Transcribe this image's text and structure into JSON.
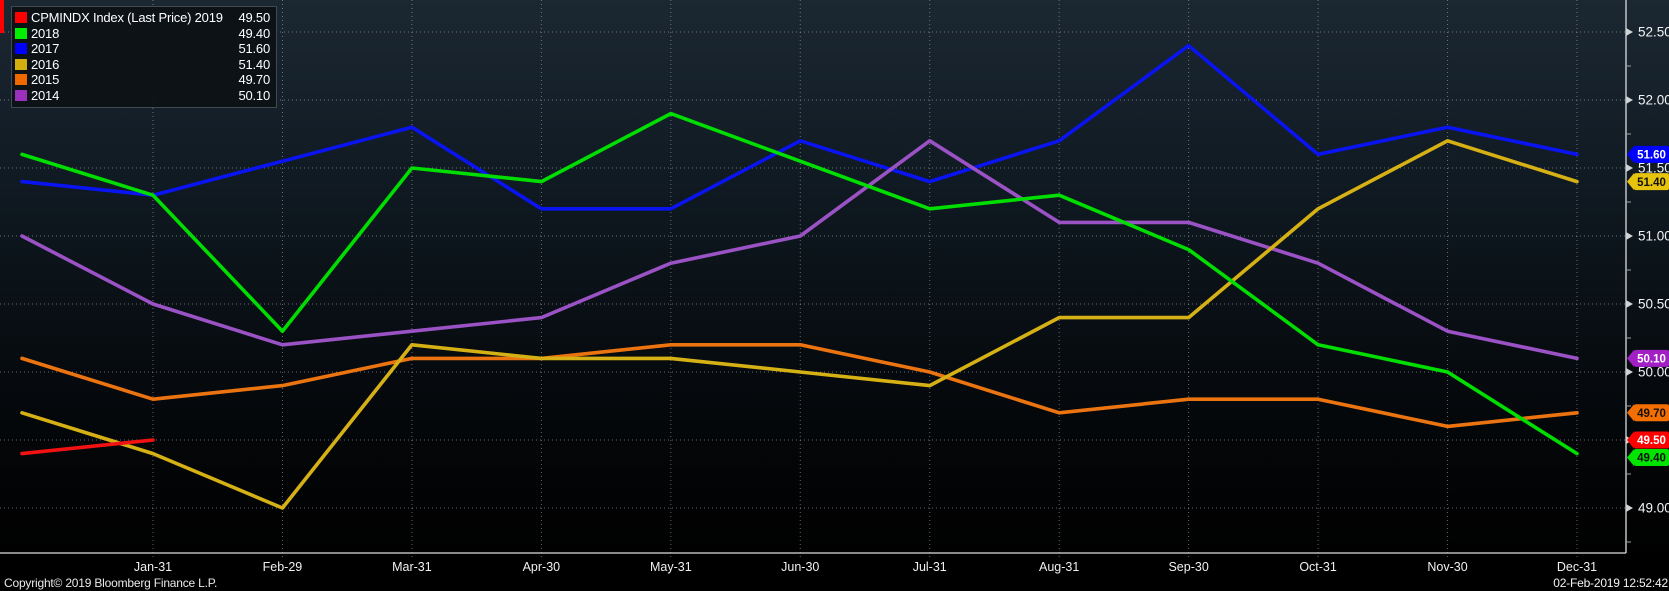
{
  "window": {
    "accent_color": "#ff0000"
  },
  "legend": {
    "items": [
      {
        "label": "CPMINDX Index (Last Price) 2019",
        "value": "49.50",
        "color": "#ff0000"
      },
      {
        "label": "2018",
        "value": "49.40",
        "color": "#00ee00"
      },
      {
        "label": "2017",
        "value": "51.60",
        "color": "#0000ff"
      },
      {
        "label": "2016",
        "value": "51.40",
        "color": "#d4af10"
      },
      {
        "label": "2015",
        "value": "49.70",
        "color": "#f06800"
      },
      {
        "label": "2014",
        "value": "50.10",
        "color": "#9b30bc"
      }
    ]
  },
  "chart_data": {
    "type": "line",
    "x_tick_labels": [
      "Jan-31",
      "Feb-29",
      "Mar-31",
      "Apr-30",
      "May-31",
      "Jun-30",
      "Jul-31",
      "Aug-31",
      "Sep-30",
      "Oct-31",
      "Nov-30",
      "Dec-31"
    ],
    "series": [
      {
        "name": "2019",
        "color": "#f21212",
        "values": [
          49.4,
          49.5
        ]
      },
      {
        "name": "2018",
        "color": "#00dd00",
        "values": [
          51.6,
          51.3,
          50.3,
          51.5,
          51.4,
          51.9,
          51.55,
          51.2,
          51.3,
          50.9,
          50.2,
          50.0,
          49.4
        ]
      },
      {
        "name": "2017",
        "color": "#0a14f0",
        "values": [
          51.4,
          51.3,
          51.55,
          51.8,
          51.2,
          51.2,
          51.7,
          51.4,
          51.7,
          52.4,
          51.6,
          51.8,
          51.6
        ]
      },
      {
        "name": "2016",
        "color": "#d6b115",
        "values": [
          49.7,
          49.4,
          49.0,
          50.2,
          50.1,
          50.1,
          50.0,
          49.9,
          50.4,
          50.4,
          51.2,
          51.7,
          51.4
        ]
      },
      {
        "name": "2015",
        "color": "#ec7410",
        "values": [
          50.1,
          49.8,
          49.9,
          50.1,
          50.1,
          50.2,
          50.2,
          50.0,
          49.7,
          49.8,
          49.8,
          49.6,
          49.7
        ]
      },
      {
        "name": "2014",
        "color": "#9a52c4",
        "values": [
          51.0,
          50.5,
          50.2,
          50.3,
          50.4,
          50.8,
          51.0,
          51.7,
          51.1,
          51.1,
          50.8,
          50.3,
          50.1
        ]
      }
    ],
    "draw_order": [
      "2017",
      "2014",
      "2015",
      "2016",
      "2018",
      "2019"
    ],
    "y_tick_labels": [
      "52.50",
      "52.00",
      "51.50",
      "51.00",
      "50.50",
      "50.00",
      "49.50",
      "49.00"
    ],
    "y_minor_ticks": [
      52.25,
      51.75,
      51.25,
      50.75,
      50.25,
      49.75,
      49.25,
      48.75
    ],
    "ylim": [
      48.7,
      52.75
    ],
    "grid": true,
    "legend_position": "top-left"
  },
  "end_labels": [
    {
      "text": "51.60",
      "bg": "#0000ff",
      "fg": "#ffffff",
      "value": 51.6
    },
    {
      "text": "51.40",
      "bg": "#e6c40e",
      "fg": "#111111",
      "value": 51.4
    },
    {
      "text": "50.10",
      "bg": "#a21fc4",
      "fg": "#ffffff",
      "value": 50.1
    },
    {
      "text": "49.70",
      "bg": "#f56e00",
      "fg": "#111111",
      "value": 49.7
    },
    {
      "text": "49.50",
      "bg": "#ff0000",
      "fg": "#ffffff",
      "value": 49.5
    },
    {
      "text": "49.40",
      "bg": "#00e400",
      "fg": "#111111",
      "value": 49.4
    }
  ],
  "footer": {
    "copyright": "Copyright© 2019 Bloomberg Finance L.P.",
    "timestamp": "02-Feb-2019 12:52:42"
  }
}
